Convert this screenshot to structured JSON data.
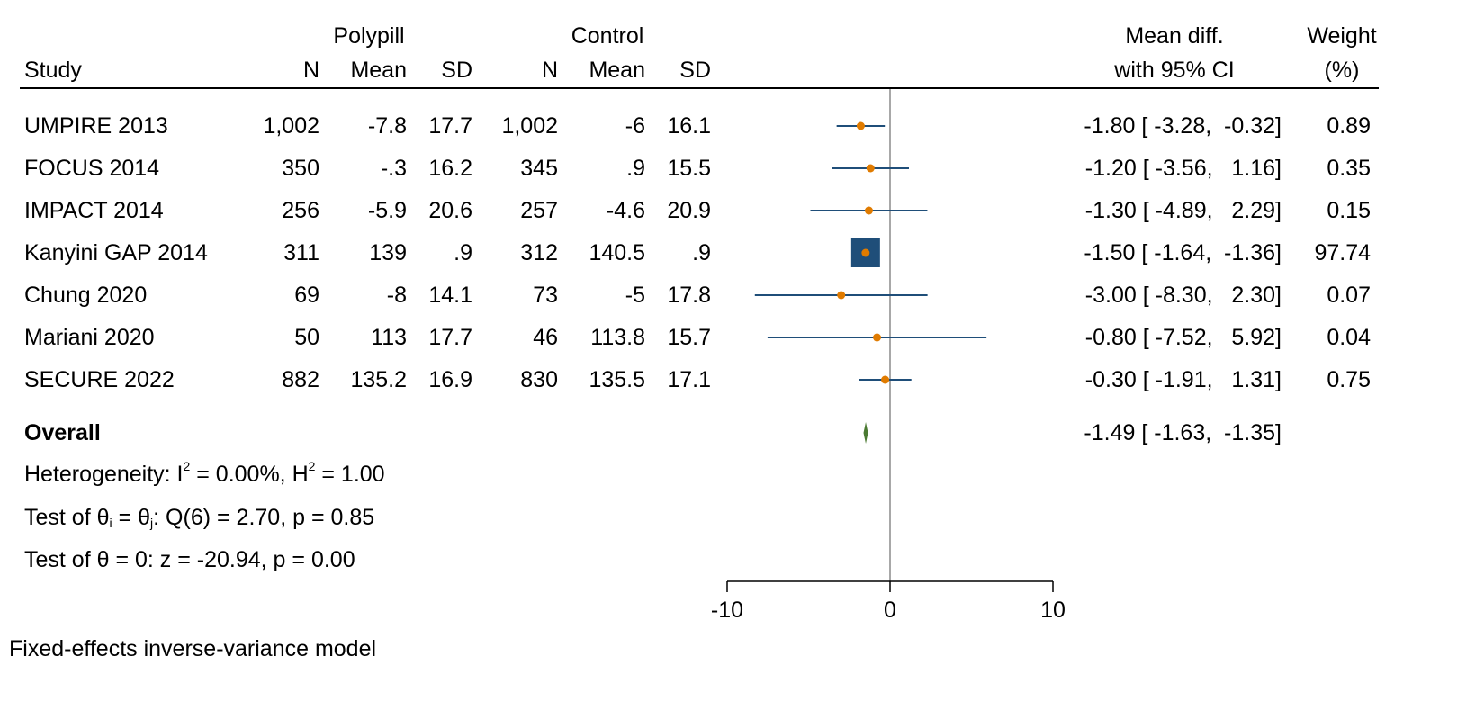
{
  "header": {
    "group1": "Polypill",
    "group2": "Control",
    "study": "Study",
    "n1": "N",
    "mean1": "Mean",
    "sd1": "SD",
    "n2": "N",
    "mean2": "Mean",
    "sd2": "SD",
    "effect_line1": "Mean diff.",
    "effect_line2": "with 95% CI",
    "weight_line1": "Weight",
    "weight_line2": "(%)"
  },
  "rows": [
    {
      "study": "UMPIRE 2013",
      "n1": "1,002",
      "mean1": "-7.8",
      "sd1": "17.7",
      "n2": "1,002",
      "mean2": "-6",
      "sd2": "16.1",
      "ci_text": "-1.80 [ -3.28,  -0.32]",
      "weight_text": "0.89"
    },
    {
      "study": "FOCUS 2014",
      "n1": "350",
      "mean1": "-.3",
      "sd1": "16.2",
      "n2": "345",
      "mean2": ".9",
      "sd2": "15.5",
      "ci_text": "-1.20 [ -3.56,   1.16]",
      "weight_text": "0.35"
    },
    {
      "study": "IMPACT 2014",
      "n1": "256",
      "mean1": "-5.9",
      "sd1": "20.6",
      "n2": "257",
      "mean2": "-4.6",
      "sd2": "20.9",
      "ci_text": "-1.30 [ -4.89,   2.29]",
      "weight_text": "0.15"
    },
    {
      "study": "Kanyini GAP 2014",
      "n1": "311",
      "mean1": "139",
      "sd1": ".9",
      "n2": "312",
      "mean2": "140.5",
      "sd2": ".9",
      "ci_text": "-1.50 [ -1.64,  -1.36]",
      "weight_text": "97.74"
    },
    {
      "study": "Chung 2020",
      "n1": "69",
      "mean1": "-8",
      "sd1": "14.1",
      "n2": "73",
      "mean2": "-5",
      "sd2": "17.8",
      "ci_text": "-3.00 [ -8.30,   2.30]",
      "weight_text": "0.07"
    },
    {
      "study": "Mariani 2020",
      "n1": "50",
      "mean1": "113",
      "sd1": "17.7",
      "n2": "46",
      "mean2": "113.8",
      "sd2": "15.7",
      "ci_text": "-0.80 [ -7.52,   5.92]",
      "weight_text": "0.04"
    },
    {
      "study": "SECURE 2022",
      "n1": "882",
      "mean1": "135.2",
      "sd1": "16.9",
      "n2": "830",
      "mean2": "135.5",
      "sd2": "17.1",
      "ci_text": "-0.30 [ -1.91,   1.31]",
      "weight_text": "0.75"
    }
  ],
  "overall": {
    "label": "Overall",
    "ci_text": "-1.49 [ -1.63,  -1.35]",
    "heterogeneity_prefix": "Heterogeneity: I",
    "heterogeneity_i2_sup": "2",
    "heterogeneity_mid": " = 0.00%, H",
    "heterogeneity_h2_sup": "2",
    "heterogeneity_suffix": " = 1.00",
    "test1_prefix": "Test of θ",
    "test1_sub_i": "i",
    "test1_mid": " = θ",
    "test1_sub_j": "j",
    "test1_suffix": ": Q(6) = 2.70, p = 0.85",
    "test2": "Test of θ = 0: z = -20.94, p = 0.00"
  },
  "footnote": "Fixed-effects inverse-variance model",
  "colors": {
    "marker": "#1f4e79",
    "point": "#e07b00",
    "diamond": "#4b7a32",
    "refline": "#8c8c8c",
    "axis": "#000000"
  },
  "chart_data": {
    "type": "scatter",
    "subtype": "forest-plot",
    "x_ticks": [
      -10,
      0,
      10
    ],
    "xlim": [
      -10,
      10
    ],
    "reference_line": 0,
    "series": [
      {
        "studies": [
          "UMPIRE 2013",
          "FOCUS 2014",
          "IMPACT 2014",
          "Kanyini GAP 2014",
          "Chung 2020",
          "Mariani 2020",
          "SECURE 2022"
        ],
        "estimate": [
          -1.8,
          -1.2,
          -1.3,
          -1.5,
          -3.0,
          -0.8,
          -0.3
        ],
        "ci_low": [
          -3.28,
          -3.56,
          -4.89,
          -1.64,
          -8.3,
          -7.52,
          -1.91
        ],
        "ci_high": [
          -0.32,
          1.16,
          2.29,
          -1.36,
          2.3,
          5.92,
          1.31
        ],
        "weight": [
          0.89,
          0.35,
          0.15,
          97.74,
          0.07,
          0.04,
          0.75
        ]
      }
    ],
    "overall": {
      "estimate": -1.49,
      "ci_low": -1.63,
      "ci_high": -1.35
    }
  }
}
